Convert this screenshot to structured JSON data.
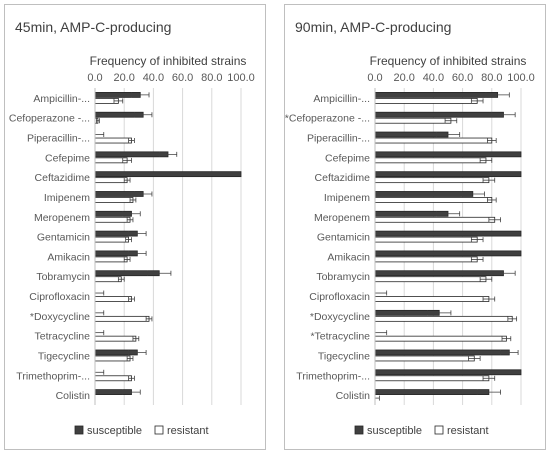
{
  "chart_data": [
    {
      "type": "bar",
      "orientation": "horizontal",
      "title": "45min, AMP-C-producing",
      "xlabel": "Frequency of inhibited strains",
      "xlim": [
        0,
        100
      ],
      "xticks": [
        "0.0",
        "20.0",
        "40.0",
        "60.0",
        "80.0",
        "100.0"
      ],
      "grid": true,
      "legend_position": "bottom",
      "categories": [
        "Ampicillin-...",
        "Cefoperazone -...",
        "Piperacillin-...",
        "Cefepime",
        "Ceftazidime",
        "Imipenem",
        "Meropenem",
        "Gentamicin",
        "Amikacin",
        "Tobramycin",
        "Ciprofloxacin",
        "*Doxycycline",
        "Tetracycline",
        "Tigecycline",
        "Trimethoprim-...",
        "Colistin"
      ],
      "series": [
        {
          "name": "susceptible",
          "color": "#404040",
          "values": [
            31,
            33,
            0,
            50,
            100,
            33,
            25,
            29,
            29,
            44,
            0,
            0,
            0,
            29,
            0,
            25
          ],
          "errors": [
            6,
            6,
            6,
            6,
            0,
            6,
            6,
            6,
            6,
            8,
            6,
            6,
            6,
            6,
            6,
            6
          ]
        },
        {
          "name": "resistant",
          "color": "#ffffff",
          "values": [
            16,
            2,
            25,
            22,
            22,
            26,
            24,
            23,
            22,
            18,
            25,
            37,
            28,
            24,
            25,
            0
          ],
          "errors": [
            3,
            1,
            2,
            3,
            2,
            2,
            2,
            2,
            2,
            2,
            2,
            2,
            2,
            2,
            2,
            0
          ]
        }
      ]
    },
    {
      "type": "bar",
      "orientation": "horizontal",
      "title": "90min, AMP-C-producing",
      "xlabel": "Frequency of inhibited strains",
      "xlim": [
        0,
        100
      ],
      "xticks": [
        "0.0",
        "20.0",
        "40.0",
        "60.0",
        "80.0",
        "100.0"
      ],
      "grid": true,
      "legend_position": "bottom",
      "categories": [
        "Ampicillin-...",
        "*Cefoperazone -...",
        "Piperacillin-...",
        "Cefepime",
        "Ceftazidime",
        "Imipenem",
        "Meropenem",
        "Gentamicin",
        "Amikacin",
        "Tobramycin",
        "Ciprofloxacin",
        "*Doxycycline",
        "*Tetracycline",
        "Tigecycline",
        "Trimethoprim-...",
        "Colistin"
      ],
      "series": [
        {
          "name": "susceptible",
          "color": "#404040",
          "values": [
            84,
            88,
            50,
            100,
            100,
            67,
            50,
            100,
            100,
            88,
            0,
            44,
            0,
            92,
            100,
            78
          ],
          "errors": [
            8,
            8,
            8,
            0,
            0,
            8,
            8,
            0,
            0,
            8,
            8,
            8,
            8,
            6,
            0,
            8
          ]
        },
        {
          "name": "resistant",
          "color": "#ffffff",
          "values": [
            70,
            52,
            80,
            76,
            78,
            80,
            82,
            70,
            70,
            76,
            78,
            94,
            90,
            68,
            78,
            0
          ],
          "errors": [
            4,
            4,
            3,
            4,
            4,
            3,
            4,
            4,
            4,
            4,
            4,
            3,
            3,
            4,
            4,
            3
          ]
        }
      ]
    }
  ]
}
